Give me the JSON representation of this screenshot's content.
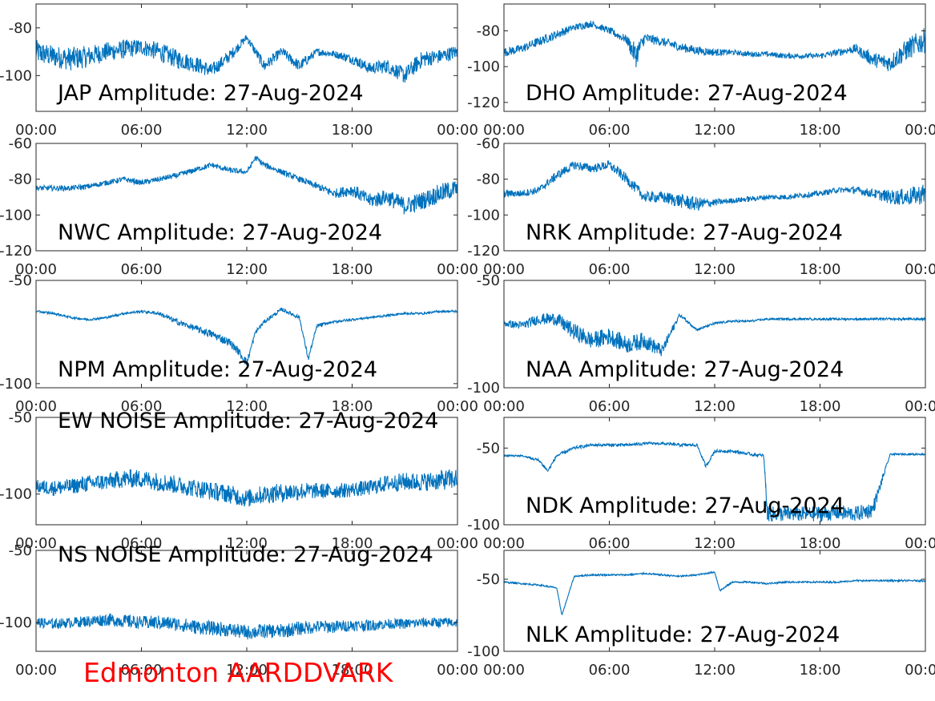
{
  "footer_label": "Edmonton AARDDVARK",
  "line_color": "#0072bd",
  "footer_color": "#ff0000",
  "x_ticks": [
    "00:00",
    "06:00",
    "12:00",
    "18:00",
    "00:00"
  ],
  "chart_data": [
    {
      "type": "line",
      "title": "JAP Amplitude: 27-Aug-2024",
      "ylim": [
        -115,
        -70
      ],
      "yticks": [
        -80,
        -100
      ],
      "ytick_labels": [
        "-80",
        "-100"
      ],
      "grid": false,
      "trace": {
        "x": [
          0,
          1,
          2,
          3,
          4,
          5,
          6,
          7,
          8,
          9,
          10,
          11,
          12,
          13,
          14,
          15,
          16,
          17,
          18,
          19,
          20,
          21,
          22,
          23,
          24
        ],
        "y": [
          -90,
          -92,
          -93,
          -92,
          -90,
          -89,
          -88,
          -90,
          -93,
          -95,
          -98,
          -92,
          -84,
          -96,
          -90,
          -96,
          -90,
          -91,
          -93,
          -97,
          -96,
          -100,
          -93,
          -92,
          -90
        ],
        "noise": [
          10,
          9,
          10,
          9,
          8,
          8,
          7,
          8,
          8,
          7,
          6,
          5,
          3,
          5,
          4,
          5,
          3,
          3,
          4,
          5,
          6,
          7,
          7,
          6,
          6
        ]
      }
    },
    {
      "type": "line",
      "title": "DHO Amplitude: 27-Aug-2024",
      "ylim": [
        -125,
        -65
      ],
      "yticks": [
        -80,
        -100,
        -120
      ],
      "ytick_labels": [
        "-80",
        "-100",
        "-120"
      ],
      "grid": false,
      "trace": {
        "x": [
          0,
          1,
          2,
          3,
          4,
          5,
          6,
          7,
          7.5,
          8,
          9,
          10,
          11,
          12,
          13,
          14,
          15,
          16,
          17,
          18,
          19,
          20,
          21,
          22,
          23,
          24
        ],
        "y": [
          -92,
          -90,
          -86,
          -82,
          -78,
          -76,
          -80,
          -85,
          -94,
          -84,
          -86,
          -89,
          -91,
          -92,
          -92,
          -93,
          -93,
          -94,
          -94,
          -94,
          -92,
          -90,
          -96,
          -98,
          -90,
          -85
        ],
        "noise": [
          5,
          5,
          5,
          5,
          4,
          4,
          4,
          5,
          14,
          6,
          5,
          5,
          5,
          4,
          3,
          3,
          3,
          3,
          3,
          3,
          4,
          5,
          8,
          10,
          12,
          14
        ]
      }
    },
    {
      "type": "line",
      "title": "NWC Amplitude: 27-Aug-2024",
      "ylim": [
        -120,
        -60
      ],
      "yticks": [
        -60,
        -80,
        -100,
        -120
      ],
      "ytick_labels": [
        "-60",
        "-80",
        "-100",
        "-120"
      ],
      "grid": false,
      "trace": {
        "x": [
          0,
          1,
          2,
          3,
          4,
          5,
          6,
          7,
          8,
          9,
          10,
          11,
          12,
          12.5,
          13,
          14,
          15,
          16,
          17,
          18,
          19,
          20,
          21,
          22,
          23,
          24
        ],
        "y": [
          -85,
          -85,
          -85,
          -84,
          -82,
          -80,
          -82,
          -80,
          -78,
          -75,
          -72,
          -75,
          -76,
          -68,
          -72,
          -76,
          -80,
          -84,
          -88,
          -86,
          -92,
          -90,
          -95,
          -92,
          -88,
          -85
        ],
        "noise": [
          3,
          3,
          3,
          3,
          3,
          3,
          3,
          3,
          3,
          3,
          3,
          3,
          3,
          3,
          3,
          3,
          3,
          4,
          5,
          7,
          8,
          9,
          10,
          10,
          11,
          10
        ]
      }
    },
    {
      "type": "line",
      "title": "NRK Amplitude: 27-Aug-2024",
      "ylim": [
        -120,
        -60
      ],
      "yticks": [
        -60,
        -80,
        -100,
        -120
      ],
      "ytick_labels": [
        "-60",
        "-80",
        "-100",
        "-120"
      ],
      "grid": false,
      "trace": {
        "x": [
          0,
          1,
          2,
          3,
          4,
          5,
          6,
          7,
          8,
          9,
          10,
          11,
          12,
          13,
          14,
          15,
          16,
          17,
          18,
          19,
          20,
          21,
          22,
          23,
          24
        ],
        "y": [
          -88,
          -88,
          -86,
          -78,
          -72,
          -74,
          -72,
          -80,
          -90,
          -90,
          -92,
          -94,
          -93,
          -92,
          -91,
          -90,
          -90,
          -89,
          -88,
          -86,
          -86,
          -88,
          -90,
          -90,
          -88
        ],
        "noise": [
          4,
          4,
          4,
          5,
          5,
          5,
          5,
          6,
          6,
          6,
          8,
          8,
          4,
          3,
          3,
          3,
          3,
          3,
          3,
          3,
          4,
          5,
          8,
          10,
          12
        ]
      }
    },
    {
      "type": "line",
      "title": "NPM Amplitude: 27-Aug-2024",
      "ylim": [
        -102,
        -50
      ],
      "yticks": [
        -50,
        -100
      ],
      "ytick_labels": [
        "-50",
        "-100"
      ],
      "grid": false,
      "trace": {
        "x": [
          0,
          1,
          2,
          3,
          4,
          5,
          6,
          7,
          8,
          9,
          10,
          11,
          11.5,
          12,
          12.5,
          13,
          14,
          15,
          15.5,
          16,
          17,
          18,
          19,
          20,
          21,
          22,
          23,
          24
        ],
        "y": [
          -65,
          -66,
          -68,
          -69,
          -68,
          -66,
          -65,
          -66,
          -70,
          -73,
          -76,
          -80,
          -84,
          -90,
          -75,
          -70,
          -64,
          -68,
          -88,
          -72,
          -70,
          -69,
          -68,
          -67,
          -66,
          -66,
          -65,
          -65
        ],
        "noise": [
          1,
          1,
          1,
          1,
          1,
          1,
          1,
          2,
          3,
          3,
          4,
          4,
          4,
          4,
          2,
          2,
          2,
          2,
          2,
          2,
          1,
          1,
          1,
          1,
          1,
          1,
          1,
          1
        ]
      }
    },
    {
      "type": "line",
      "title": "NAA Amplitude: 27-Aug-2024",
      "ylim": [
        -100,
        -50
      ],
      "yticks": [
        -50,
        -100
      ],
      "ytick_labels": [
        "-50",
        "-100"
      ],
      "grid": false,
      "trace": {
        "x": [
          0,
          1,
          2,
          3,
          4,
          5,
          6,
          7,
          8,
          9,
          10,
          11,
          12,
          13,
          14,
          15,
          16,
          17,
          18,
          19,
          20,
          21,
          22,
          23,
          24
        ],
        "y": [
          -70,
          -71,
          -68,
          -68,
          -74,
          -78,
          -76,
          -80,
          -78,
          -83,
          -66,
          -73,
          -70,
          -69,
          -69,
          -68,
          -68,
          -68,
          -68,
          -68,
          -68,
          -68,
          -68,
          -68,
          -68
        ],
        "noise": [
          3,
          4,
          5,
          6,
          8,
          8,
          8,
          8,
          8,
          6,
          2,
          1,
          1,
          1,
          1,
          1,
          1,
          1,
          1,
          1,
          1,
          1,
          1,
          1,
          1
        ]
      }
    },
    {
      "type": "line",
      "title": "EW NOISE Amplitude: 27-Aug-2024",
      "ylim": [
        -120,
        -50
      ],
      "yticks": [
        -50,
        -100
      ],
      "ytick_labels": [
        "-50",
        "-100"
      ],
      "grid": false,
      "trace": {
        "x": [
          0,
          1,
          2,
          3,
          4,
          5,
          6,
          7,
          8,
          9,
          10,
          11,
          12,
          13,
          14,
          15,
          16,
          17,
          18,
          19,
          20,
          21,
          22,
          23,
          24
        ],
        "y": [
          -95,
          -96,
          -95,
          -93,
          -92,
          -90,
          -90,
          -92,
          -94,
          -96,
          -98,
          -100,
          -103,
          -100,
          -99,
          -98,
          -98,
          -98,
          -97,
          -96,
          -93,
          -92,
          -92,
          -91,
          -90
        ],
        "noise": [
          9,
          10,
          10,
          11,
          11,
          12,
          12,
          12,
          12,
          12,
          12,
          12,
          12,
          12,
          12,
          12,
          10,
          10,
          10,
          10,
          11,
          12,
          12,
          13,
          14
        ]
      }
    },
    {
      "type": "line",
      "title": "NDK Amplitude: 27-Aug-2024",
      "ylim": [
        -100,
        -30
      ],
      "yticks": [
        -50,
        -100
      ],
      "ytick_labels": [
        "-50",
        "-100"
      ],
      "grid": false,
      "trace": {
        "x": [
          0,
          1,
          2,
          2.5,
          3,
          4,
          5,
          6,
          7,
          8,
          9,
          10,
          11,
          11.5,
          12,
          13,
          14,
          14.8,
          15,
          16,
          17,
          18,
          19,
          20,
          21,
          22,
          23,
          24
        ],
        "y": [
          -55,
          -55,
          -58,
          -65,
          -55,
          -50,
          -48,
          -48,
          -48,
          -47,
          -47,
          -48,
          -48,
          -62,
          -52,
          -52,
          -54,
          -55,
          -93,
          -93,
          -93,
          -93,
          -92,
          -93,
          -90,
          -54,
          -54,
          -54
        ],
        "noise": [
          1,
          1,
          2,
          2,
          2,
          2,
          2,
          2,
          2,
          2,
          2,
          2,
          2,
          2,
          2,
          2,
          2,
          2,
          10,
          10,
          10,
          10,
          10,
          10,
          10,
          1,
          1,
          1
        ]
      }
    },
    {
      "type": "line",
      "title": "NS NOISE Amplitude: 27-Aug-2024",
      "ylim": [
        -120,
        -50
      ],
      "yticks": [
        -50,
        -100
      ],
      "ytick_labels": [
        "-50",
        "-100"
      ],
      "grid": false,
      "trace": {
        "x": [
          0,
          1,
          2,
          3,
          4,
          5,
          6,
          7,
          8,
          9,
          10,
          11,
          12,
          13,
          14,
          15,
          16,
          17,
          18,
          19,
          20,
          21,
          22,
          23,
          24
        ],
        "y": [
          -100,
          -101,
          -100,
          -99,
          -98,
          -99,
          -100,
          -100,
          -101,
          -103,
          -104,
          -105,
          -107,
          -106,
          -106,
          -104,
          -103,
          -103,
          -102,
          -102,
          -101,
          -101,
          -100,
          -100,
          -100
        ],
        "noise": [
          7,
          7,
          7,
          8,
          9,
          9,
          9,
          10,
          10,
          10,
          10,
          10,
          10,
          10,
          10,
          10,
          9,
          9,
          8,
          8,
          7,
          7,
          7,
          7,
          7
        ]
      }
    },
    {
      "type": "line",
      "title": "NLK Amplitude: 27-Aug-2024",
      "ylim": [
        -100,
        -30
      ],
      "yticks": [
        -50,
        -100
      ],
      "ytick_labels": [
        "-50",
        "-100"
      ],
      "grid": false,
      "trace": {
        "x": [
          0,
          1,
          2,
          3,
          3.3,
          4,
          5,
          6,
          7,
          8,
          9,
          10,
          11,
          12,
          12.3,
          13,
          14,
          15,
          16,
          17,
          18,
          19,
          20,
          21,
          22,
          23,
          24
        ],
        "y": [
          -52,
          -53,
          -54,
          -56,
          -75,
          -48,
          -47,
          -47,
          -47,
          -46,
          -47,
          -48,
          -47,
          -45,
          -58,
          -52,
          -52,
          -53,
          -52,
          -52,
          -52,
          -52,
          -51,
          -51,
          -51,
          -51,
          -51
        ],
        "noise": [
          1,
          1,
          1,
          1,
          1,
          1,
          1,
          1,
          1,
          1,
          1,
          1,
          1,
          1,
          1,
          1,
          1,
          1,
          1,
          1,
          1,
          1,
          1,
          1,
          1,
          1,
          1
        ]
      }
    }
  ]
}
